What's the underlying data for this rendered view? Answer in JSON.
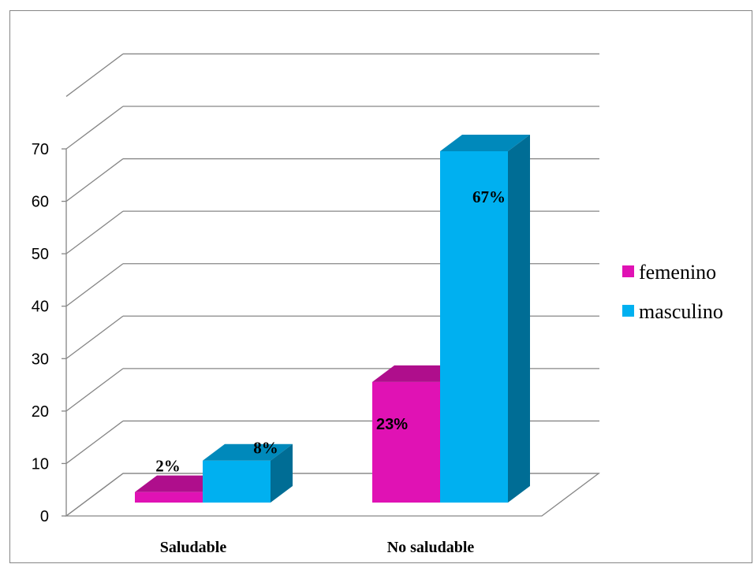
{
  "chart_data": {
    "type": "bar",
    "title": "",
    "xlabel": "",
    "ylabel": "",
    "categories": [
      "Saludable",
      "No saludable"
    ],
    "series": [
      {
        "name": "femenino",
        "values": [
          2,
          23
        ],
        "labels": [
          "2%",
          "23%"
        ],
        "color": "#E012B4"
      },
      {
        "name": "masculino",
        "values": [
          8,
          67
        ],
        "labels": [
          "8%",
          "67%"
        ],
        "color": "#00B0F0"
      }
    ],
    "ylim": [
      0,
      70
    ],
    "yticks": [
      "0",
      "10",
      "20",
      "30",
      "40",
      "50",
      "60",
      "70"
    ],
    "grid": true,
    "legend_position": "right",
    "style": "3d-clustered-column"
  }
}
